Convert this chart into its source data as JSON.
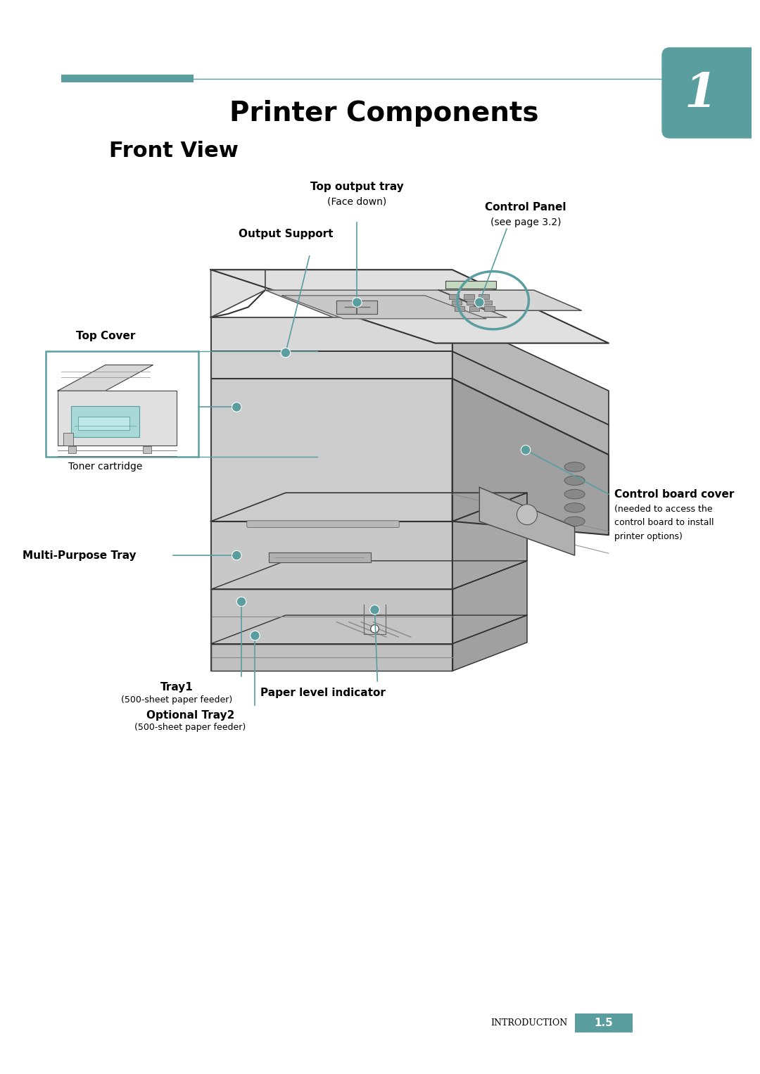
{
  "bg_color": "#ffffff",
  "teal_color": "#5a9ea0",
  "title1": "Printer Components",
  "title2": "Front View",
  "chapter_num": "1",
  "page_footer_label": "INTRODUCTION",
  "page_footer_num": "1.5",
  "printer_body": "#c8c8c8",
  "printer_dark": "#909090",
  "printer_light": "#e8e8e8",
  "printer_mid": "#b8b8b8",
  "printer_top_face": "#d8d8d8",
  "outline": "#333333"
}
